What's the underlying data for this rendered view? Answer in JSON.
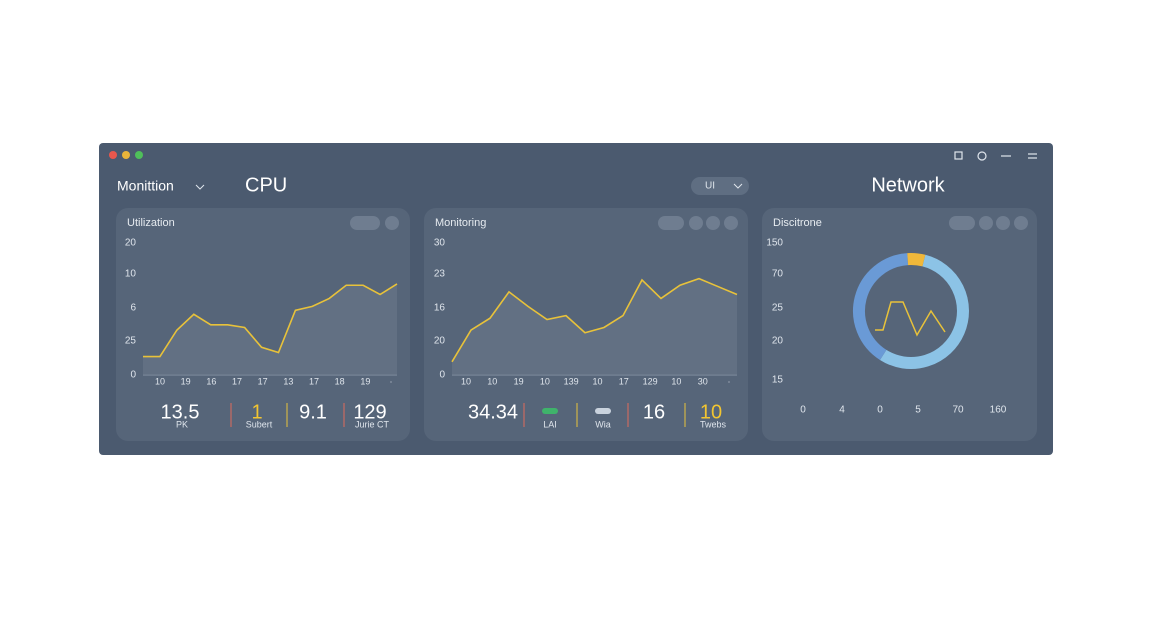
{
  "header": {
    "title": "Monittion",
    "heading": "CPU",
    "toggle": "UI",
    "network": "Network"
  },
  "chart_data": [
    {
      "type": "line",
      "title": "Utilization",
      "color": "#e8c23a",
      "ylim": [
        0,
        100
      ],
      "y_labels": [
        "20",
        "10",
        "6",
        "25",
        "0"
      ],
      "x_labels": [
        "10",
        "19",
        "16",
        "17",
        "17",
        "13",
        "17",
        "18",
        "19",
        "·"
      ],
      "values": [
        14,
        14,
        34,
        46,
        38,
        38,
        36,
        21,
        17,
        49,
        52,
        58,
        68,
        68,
        61,
        69
      ]
    },
    {
      "type": "line",
      "title": "Monitoring",
      "color": "#e8c23a",
      "ylim": [
        0,
        100
      ],
      "y_labels": [
        "30",
        "23",
        "16",
        "20",
        "0"
      ],
      "x_labels": [
        "10",
        "10",
        "19",
        "10",
        "139",
        "10",
        "17",
        "129",
        "10",
        "30",
        "·"
      ],
      "values": [
        10,
        34,
        43,
        63,
        52,
        42,
        45,
        32,
        36,
        45,
        72,
        58,
        68,
        73,
        67,
        61
      ]
    },
    {
      "type": "donut",
      "title": "Discitrone",
      "y_labels": [
        "150",
        "70",
        "25",
        "20",
        "15"
      ],
      "x_labels": [
        "0",
        "4",
        "0",
        "5",
        "70",
        "160"
      ],
      "values": [
        55,
        40,
        5
      ],
      "colors": [
        "#8cc3e6",
        "#6a9ad6",
        "#f0b83a"
      ]
    }
  ],
  "stats": [
    [
      {
        "value": "13.5",
        "unit": "PK",
        "color": "#ffffff"
      },
      {
        "value": "1",
        "unit": "Subert",
        "color": "#f2c531"
      },
      {
        "value": "9.1",
        "color": "#ffffff"
      },
      {
        "value": "129",
        "unit": "Jurie CT",
        "color": "#ffffff"
      }
    ],
    [
      {
        "value": "34.34",
        "color": "#ffffff"
      },
      {
        "unit": "LAI",
        "color": "#3fb36b"
      },
      {
        "unit": "Wia",
        "color": "#c9d2dd"
      },
      {
        "value": "16",
        "color": "#ffffff"
      },
      {
        "value": "10",
        "unit": "Twebs",
        "color": "#f2c531"
      }
    ]
  ]
}
